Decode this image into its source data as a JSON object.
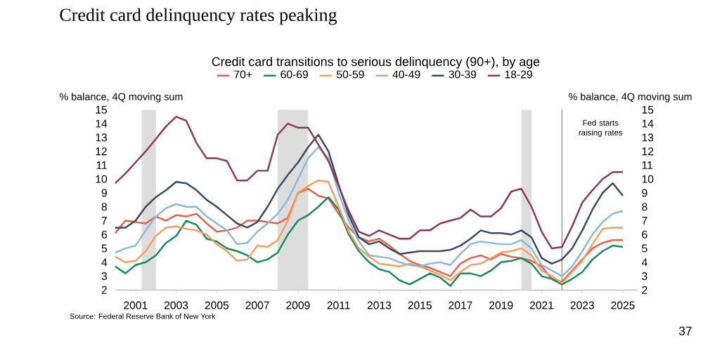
{
  "chart_data": {
    "type": "line",
    "title": "Credit card delinquency rates peaking",
    "subtitle": "Credit card transitions to serious delinquency (90+), by age",
    "ylabel": "% balance, 4Q moving sum",
    "y2label": "% balance, 4Q moving sum",
    "x": [
      2000,
      2000.5,
      2001,
      2001.5,
      2002,
      2002.5,
      2003,
      2003.5,
      2004,
      2004.5,
      2005,
      2005.5,
      2006,
      2006.5,
      2007,
      2007.5,
      2008,
      2008.5,
      2009,
      2009.5,
      2010,
      2010.5,
      2011,
      2011.5,
      2012,
      2012.5,
      2013,
      2013.5,
      2014,
      2014.5,
      2015,
      2015.5,
      2016,
      2016.5,
      2017,
      2017.5,
      2018,
      2018.5,
      2019,
      2019.5,
      2020,
      2020.5,
      2021,
      2021.5,
      2022,
      2022.5,
      2023,
      2023.5,
      2024,
      2024.5,
      2025
    ],
    "series": [
      {
        "name": "70+",
        "color": "#e8604c",
        "values": [
          6.1,
          7.0,
          6.9,
          6.8,
          7.3,
          7.0,
          7.4,
          7.3,
          7.5,
          6.8,
          6.2,
          6.3,
          6.5,
          7.0,
          7.0,
          6.9,
          6.8,
          7.2,
          9.0,
          9.3,
          8.8,
          8.6,
          7.5,
          6.5,
          5.8,
          5.5,
          5.7,
          5.2,
          4.6,
          4.1,
          3.8,
          3.6,
          3.3,
          3.0,
          3.9,
          4.3,
          4.5,
          4.2,
          4.6,
          4.4,
          4.3,
          4.1,
          3.7,
          2.8,
          2.6,
          3.4,
          4.2,
          5.0,
          5.4,
          5.6,
          5.6
        ]
      },
      {
        "name": "60-69",
        "color": "#1a8a5a",
        "values": [
          3.7,
          3.2,
          3.8,
          4.0,
          4.5,
          5.4,
          5.9,
          7.0,
          6.7,
          5.7,
          5.5,
          5.0,
          4.8,
          4.5,
          4.0,
          4.2,
          4.7,
          6.0,
          7.0,
          7.4,
          8.0,
          8.7,
          7.8,
          6.0,
          4.8,
          4.0,
          3.5,
          3.3,
          2.7,
          2.4,
          2.8,
          3.2,
          2.9,
          2.3,
          3.2,
          3.2,
          3.0,
          3.4,
          4.0,
          4.1,
          4.3,
          3.9,
          3.0,
          2.8,
          2.4,
          2.8,
          3.3,
          4.2,
          4.8,
          5.2,
          5.1
        ]
      },
      {
        "name": "50-59",
        "color": "#f0a060",
        "values": [
          4.4,
          4.0,
          4.1,
          4.8,
          5.9,
          6.5,
          6.6,
          6.4,
          6.3,
          6.0,
          5.3,
          4.8,
          4.1,
          4.2,
          5.2,
          5.1,
          5.6,
          7.0,
          9.0,
          9.5,
          9.9,
          9.8,
          8.0,
          6.2,
          5.0,
          4.4,
          3.9,
          3.8,
          3.7,
          3.9,
          3.7,
          3.4,
          3.1,
          2.7,
          3.3,
          3.8,
          3.9,
          4.3,
          4.7,
          4.8,
          5.0,
          4.5,
          3.4,
          3.0,
          2.5,
          3.3,
          4.1,
          5.3,
          6.4,
          6.5,
          6.5
        ]
      },
      {
        "name": "40-49",
        "color": "#8ab8e0",
        "values": [
          4.7,
          5.0,
          5.2,
          6.3,
          7.3,
          7.9,
          8.2,
          8.0,
          8.0,
          7.3,
          6.8,
          6.3,
          5.3,
          5.4,
          6.2,
          6.8,
          7.5,
          8.5,
          10.0,
          11.5,
          12.3,
          11.5,
          9.0,
          7.0,
          5.5,
          4.5,
          4.4,
          4.3,
          4.0,
          3.8,
          3.7,
          3.9,
          4.0,
          3.8,
          4.6,
          5.3,
          5.5,
          5.4,
          5.3,
          5.3,
          5.6,
          5.0,
          3.8,
          3.4,
          3.0,
          3.7,
          4.8,
          6.0,
          6.9,
          7.5,
          7.7
        ]
      },
      {
        "name": "30-39",
        "color": "#3c4a5e",
        "values": [
          6.5,
          6.5,
          7.0,
          8.0,
          8.7,
          9.2,
          9.8,
          9.7,
          9.2,
          8.5,
          8.0,
          7.4,
          6.8,
          6.5,
          6.9,
          8.0,
          9.3,
          10.3,
          11.2,
          12.3,
          13.2,
          12.0,
          9.6,
          7.4,
          5.8,
          5.3,
          5.5,
          5.0,
          4.6,
          4.7,
          4.8,
          4.8,
          4.8,
          4.9,
          5.2,
          5.7,
          6.3,
          6.1,
          6.1,
          6.0,
          6.3,
          5.8,
          4.3,
          3.9,
          4.2,
          5.0,
          6.3,
          7.8,
          9.0,
          9.7,
          8.8
        ]
      },
      {
        "name": "18-29",
        "color": "#8b3a52",
        "values": [
          9.7,
          10.4,
          11.2,
          12.0,
          12.9,
          13.8,
          14.5,
          14.2,
          12.6,
          11.5,
          11.5,
          11.3,
          9.9,
          9.9,
          10.6,
          10.6,
          13.2,
          14.0,
          13.7,
          13.7,
          12.5,
          11.3,
          9.5,
          7.7,
          6.2,
          5.9,
          6.3,
          6.0,
          5.7,
          5.7,
          6.3,
          6.3,
          6.8,
          7.0,
          7.2,
          7.8,
          7.3,
          7.3,
          7.9,
          9.1,
          9.3,
          8.0,
          6.2,
          5.0,
          5.1,
          6.6,
          8.3,
          9.2,
          10.0,
          10.5,
          10.5
        ]
      }
    ],
    "xlim": [
      2000,
      2025.7
    ],
    "xticks": [
      2001,
      2003,
      2005,
      2007,
      2009,
      2011,
      2013,
      2015,
      2017,
      2019,
      2021,
      2023,
      2025
    ],
    "ylim": [
      2,
      15
    ],
    "yticks": [
      2,
      3,
      4,
      5,
      6,
      7,
      8,
      9,
      10,
      11,
      12,
      13,
      14,
      15
    ],
    "y2lim": [
      2,
      15
    ],
    "y2ticks": [
      2,
      3,
      4,
      5,
      6,
      7,
      8,
      9,
      10,
      11,
      12,
      13,
      14,
      15
    ],
    "bands": [
      {
        "axis": "x",
        "from": 2001.3,
        "to": 2002.0,
        "color": "#dddddd"
      },
      {
        "axis": "x",
        "from": 2008.0,
        "to": 2009.5,
        "color": "#dddddd"
      },
      {
        "axis": "x",
        "from": 2020.0,
        "to": 2020.5,
        "color": "#dddddd"
      }
    ],
    "ref_lines": [
      {
        "axis": "x",
        "value": 2022.0,
        "label": "Fed starts raising rates",
        "color": "#999999"
      }
    ],
    "annotations": [
      "Source: Federal Reserve Bank of New York",
      "37"
    ],
    "legend": "top",
    "grid": false,
    "marker": "none",
    "line_style": "solid"
  }
}
